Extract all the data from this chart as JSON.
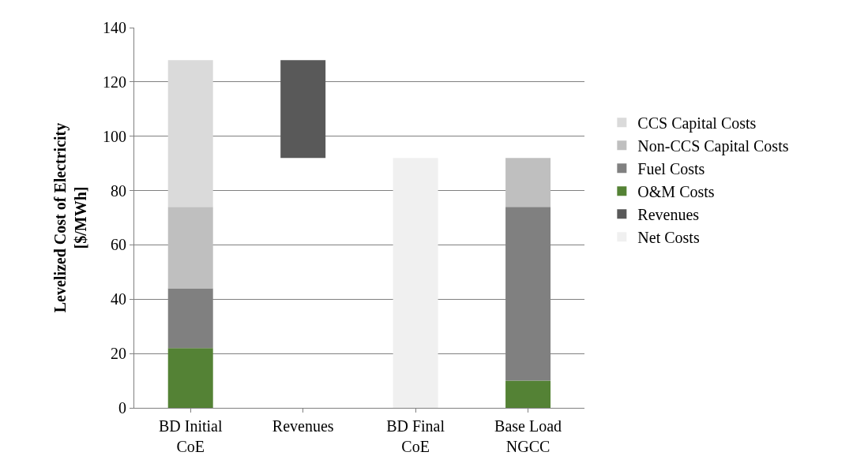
{
  "chart_data": {
    "type": "bar",
    "stacked": true,
    "ylabel": "Levelized Cost of Electricity\n[$/MWh]",
    "categories": [
      "BD Initial CoE",
      "Revenues",
      "BD Final CoE",
      "Base Load NGCC"
    ],
    "series": [
      {
        "name": "Net Costs",
        "color": "#f0f0f0",
        "values": [
          null,
          null,
          92,
          null
        ]
      },
      {
        "name": "Revenues",
        "color": "#595959",
        "values": [
          null,
          36,
          null,
          null
        ],
        "base": [
          null,
          92,
          null,
          null
        ]
      },
      {
        "name": "O&M Costs",
        "color": "#548235",
        "values": [
          22,
          null,
          null,
          10
        ]
      },
      {
        "name": "Fuel Costs",
        "color": "#808080",
        "values": [
          22,
          null,
          null,
          64
        ]
      },
      {
        "name": "Non-CCS Capital Costs",
        "color": "#bfbfbf",
        "values": [
          30,
          null,
          null,
          18
        ]
      },
      {
        "name": "CCS Capital Costs",
        "color": "#dadada",
        "values": [
          54,
          null,
          null,
          null
        ]
      }
    ],
    "ylim": [
      0,
      140
    ],
    "yticks": [
      0,
      20,
      40,
      60,
      80,
      100,
      120,
      140
    ],
    "grid": "y",
    "legend": "right"
  }
}
